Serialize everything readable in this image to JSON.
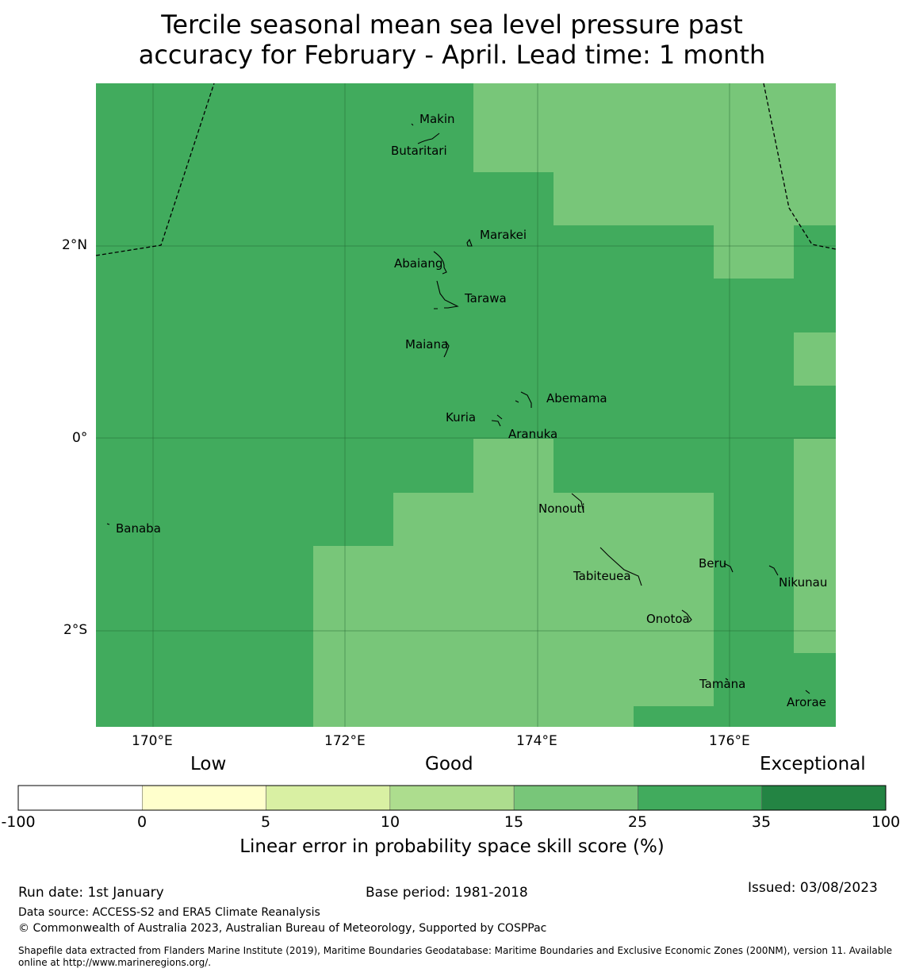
{
  "title": {
    "line1": "Tercile seasonal mean sea level pressure past",
    "line2": "accuracy for February - April. Lead time: 1 month"
  },
  "map": {
    "lat_labels": [
      "2°N",
      "0°",
      "2°S"
    ],
    "lon_labels": [
      "170°E",
      "172°E",
      "174°E",
      "176°E"
    ],
    "islands": [
      {
        "name": "Makin"
      },
      {
        "name": "Butaritari"
      },
      {
        "name": "Marakei"
      },
      {
        "name": "Abaiang"
      },
      {
        "name": "Tarawa"
      },
      {
        "name": "Maiana"
      },
      {
        "name": "Abemama"
      },
      {
        "name": "Kuria"
      },
      {
        "name": "Aranuka"
      },
      {
        "name": "Banaba"
      },
      {
        "name": "Nonouti"
      },
      {
        "name": "Beru"
      },
      {
        "name": "Nikunau"
      },
      {
        "name": "Tabiteuea"
      },
      {
        "name": "Onotoa"
      },
      {
        "name": "Tamana"
      },
      {
        "name": "Arorae"
      }
    ],
    "colors": {
      "good_dark": "#41ab5d",
      "good_light": "#78c679",
      "boundary": "#000000"
    }
  },
  "colorbar": {
    "categories": [
      "Low",
      "Good",
      "Exceptional"
    ],
    "ticks": [
      "-100",
      "0",
      "5",
      "10",
      "15",
      "25",
      "35",
      "100"
    ],
    "colors": [
      "#ffffff",
      "#ffffcc",
      "#d9f0a3",
      "#addd8e",
      "#78c679",
      "#41ab5d",
      "#238443"
    ],
    "label": "Linear error in probability space skill score (%)"
  },
  "footer": {
    "run_date": "Run date: 1st January",
    "base_period": "Base period: 1981-2018",
    "issued": "Issued: 03/08/2023",
    "data_source": "Data source: ACCESS-S2 and ERA5 Climate Reanalysis",
    "copyright": "© Commonwealth of Australia 2023, Australian Bureau of Meteorology, Supported by COSPPac",
    "shapefile_line1": "Shapefile data extracted from Flanders Marine Institute (2019), Maritime Boundaries Geodatabase: Maritime Boundaries and Exclusive Economic Zones (200NM), version 11. Available",
    "shapefile_line2": "online at http://www.marineregions.org/."
  }
}
